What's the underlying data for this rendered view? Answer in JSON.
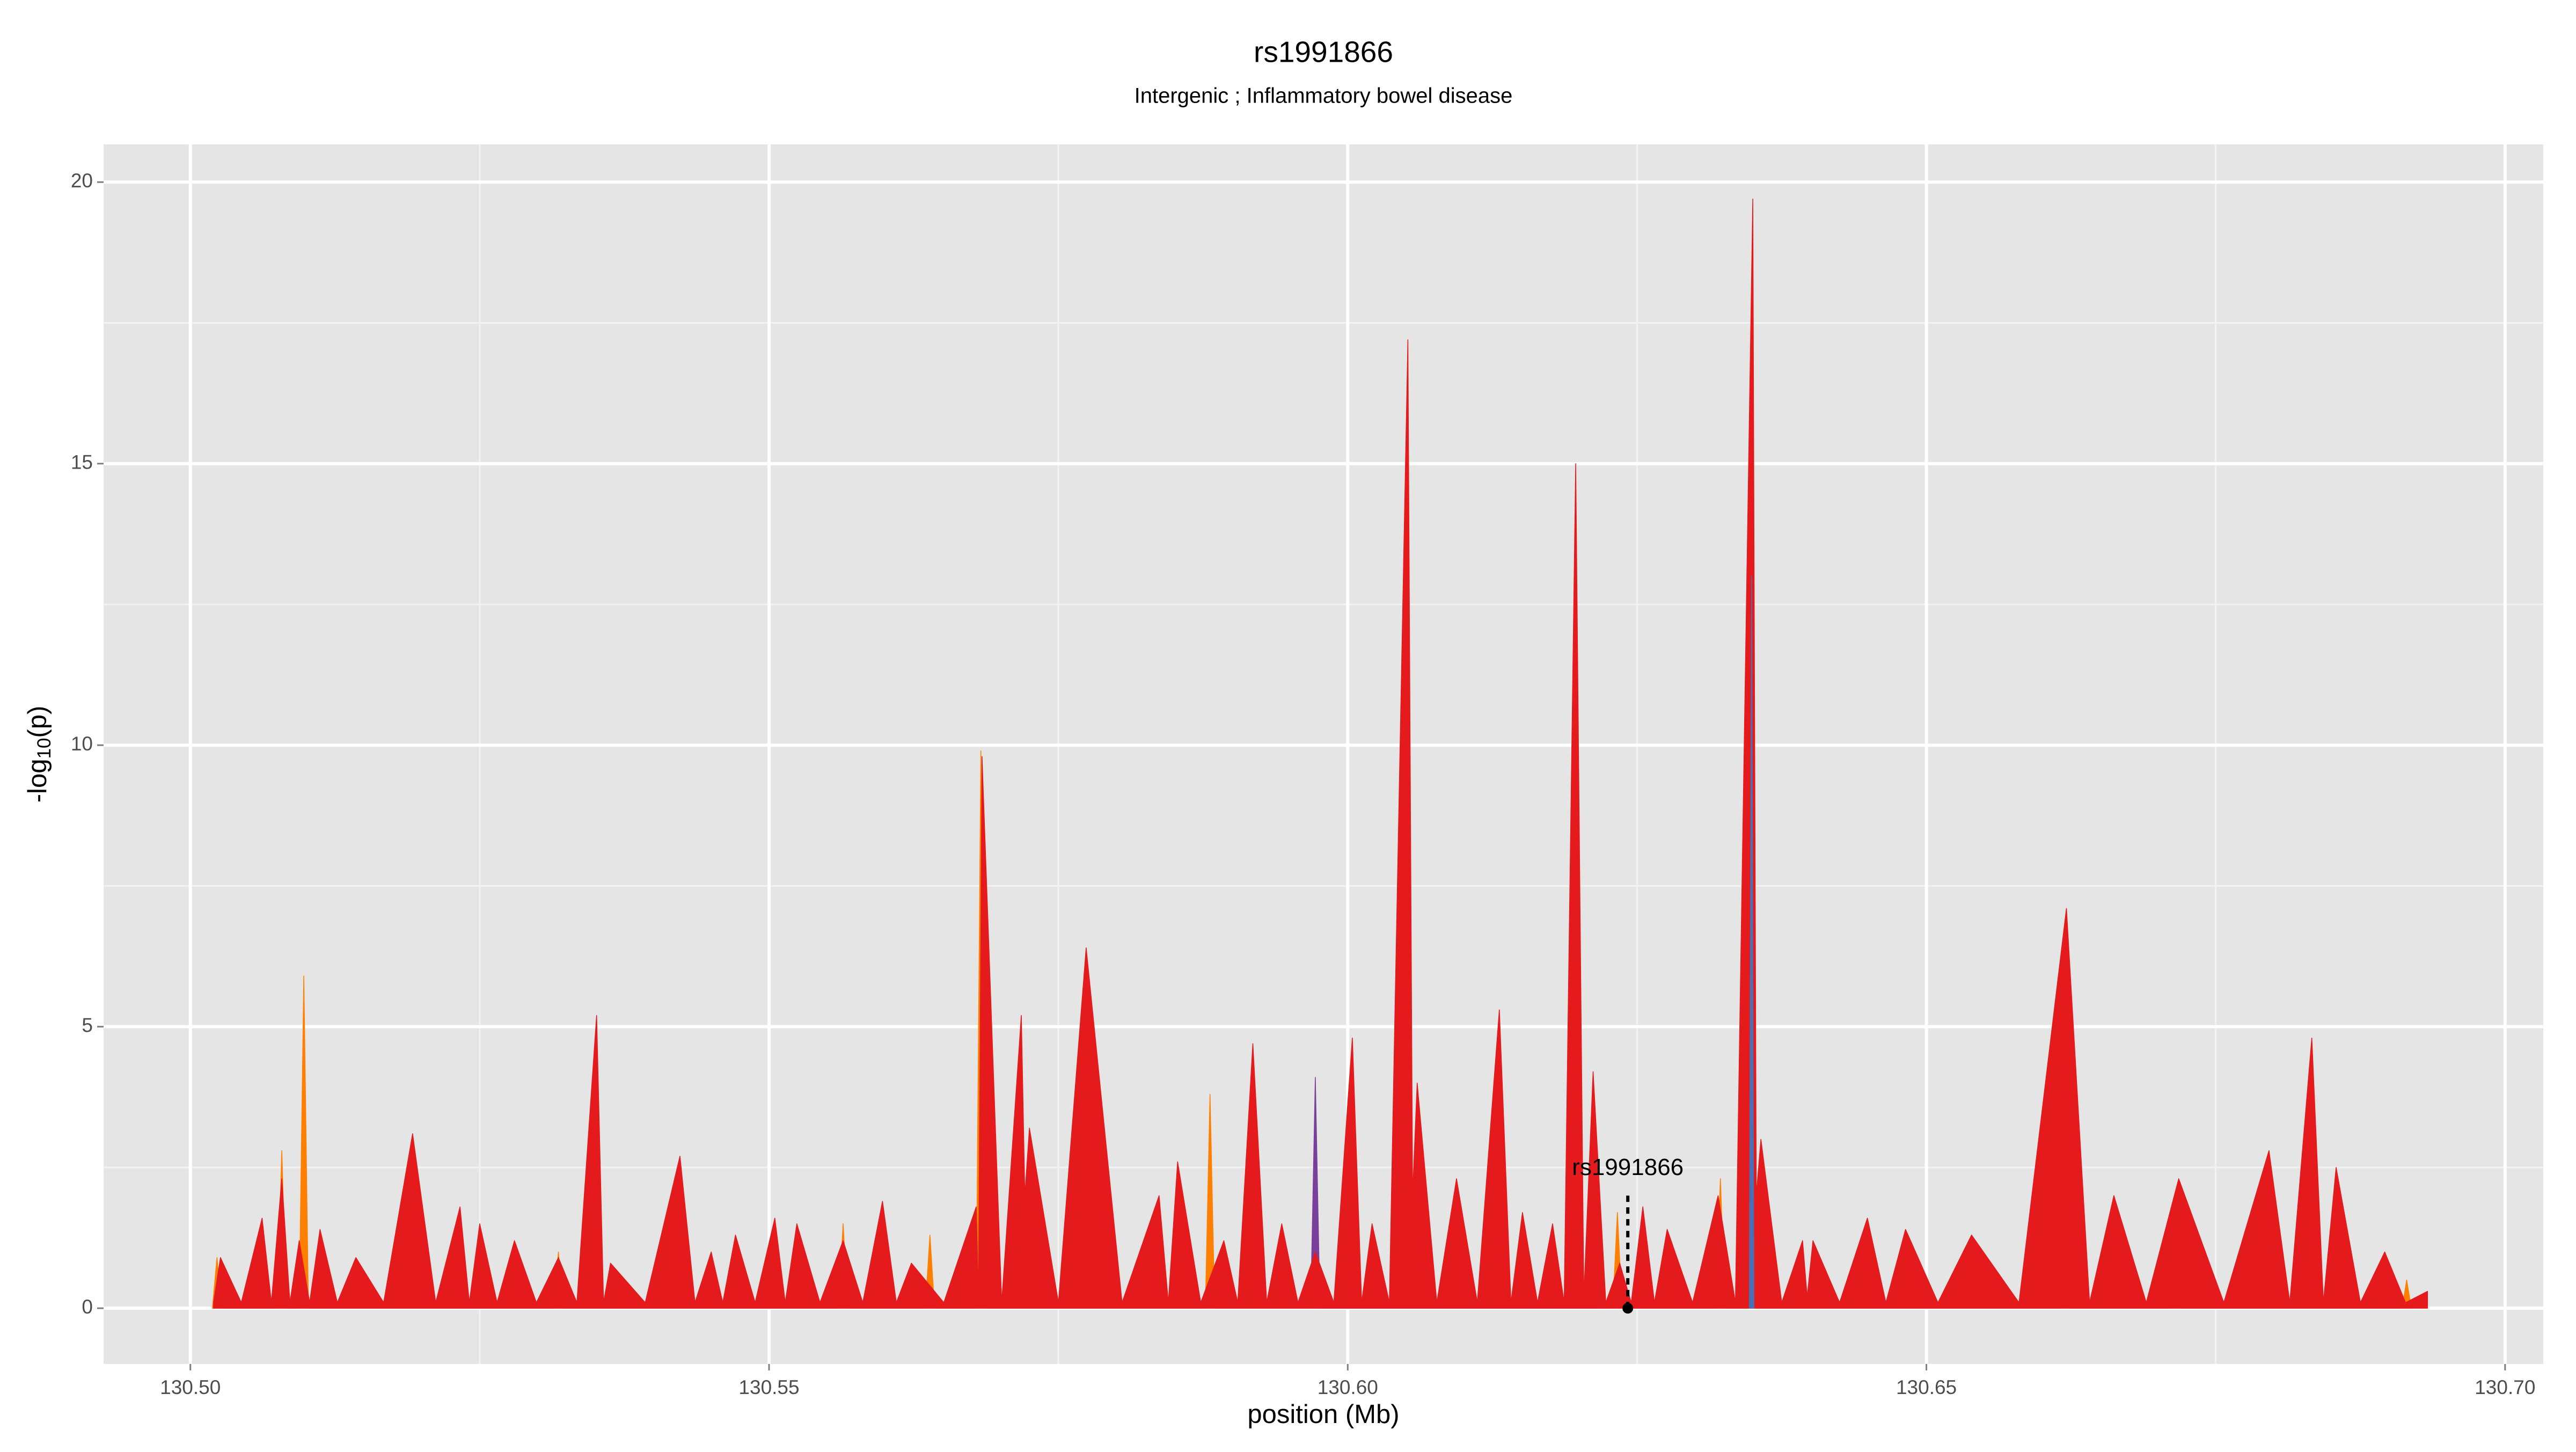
{
  "chart_data": {
    "type": "area",
    "title": "rs1991866",
    "subtitle": "Intergenic ; Inflammatory bowel disease",
    "x_label": "position (Mb)",
    "y_label": {
      "text": "-log",
      "subscript": "10",
      "suffix": "(p)"
    },
    "xlim": [
      130.4925,
      130.7033
    ],
    "ylim": [
      -0.99,
      20.67
    ],
    "xticks": [
      {
        "value": 130.5,
        "label": "130.50"
      },
      {
        "value": 130.55,
        "label": "130.55"
      },
      {
        "value": 130.6,
        "label": "130.60"
      },
      {
        "value": 130.65,
        "label": "130.65"
      },
      {
        "value": 130.7,
        "label": "130.70"
      }
    ],
    "yticks": [
      0,
      5,
      10,
      15,
      20
    ],
    "x_minor_grid": [
      130.525,
      130.575,
      130.625,
      130.675
    ],
    "y_minor_grid": [
      2.5,
      7.5,
      12.5,
      17.5
    ],
    "grid": true,
    "series": [
      {
        "color": "#ff7f00",
        "x": [
          130.5019,
          130.5023,
          130.5027,
          130.5075,
          130.5079,
          130.5083,
          130.5094,
          130.5098,
          130.5102,
          130.5314,
          130.5318,
          130.5322,
          130.556,
          130.5564,
          130.5568,
          130.5635,
          130.5639,
          130.5643,
          130.5679,
          130.5683,
          130.5687,
          130.5877,
          130.5881,
          130.5885,
          130.6229,
          130.6233,
          130.6237,
          130.6318,
          130.6322,
          130.6326,
          130.6616,
          130.662,
          130.6624,
          130.6712,
          130.6716,
          130.672,
          130.6911,
          130.6915,
          130.6919
        ],
        "values": [
          0,
          0.9,
          0,
          0,
          2.8,
          0,
          0,
          5.9,
          0,
          0,
          1.0,
          0,
          0,
          1.5,
          0,
          0,
          1.3,
          0,
          0,
          9.9,
          0,
          0,
          3.8,
          0,
          0,
          1.7,
          0,
          0,
          2.3,
          0,
          0,
          1.5,
          0,
          0,
          1.0,
          0,
          0,
          0.5,
          0
        ]
      },
      {
        "color": "#7a3f9a",
        "x": [
          130.5968,
          130.5972,
          130.5976,
          130.6215,
          130.6219,
          130.6223
        ],
        "values": [
          0,
          4.1,
          0,
          0,
          1.0,
          0
        ]
      },
      {
        "color": "#e41a1c",
        "x": [
          130.502,
          130.5026,
          130.5044,
          130.5062,
          130.507,
          130.5079,
          130.5086,
          130.5094,
          130.5103,
          130.5112,
          130.5127,
          130.5143,
          130.5167,
          130.5192,
          130.5212,
          130.5233,
          130.5241,
          130.525,
          130.5265,
          130.528,
          130.5299,
          130.5318,
          130.5334,
          130.5351,
          130.5357,
          130.5363,
          130.5393,
          130.5423,
          130.5436,
          130.545,
          130.546,
          130.5471,
          130.5488,
          130.5505,
          130.5514,
          130.5524,
          130.5544,
          130.5564,
          130.5581,
          130.5598,
          130.561,
          130.5623,
          130.5651,
          130.5679,
          130.5681,
          130.5684,
          130.5701,
          130.5718,
          130.5721,
          130.5725,
          130.575,
          130.5774,
          130.5805,
          130.5837,
          130.5845,
          130.5853,
          130.5873,
          130.5893,
          130.5905,
          130.5918,
          130.593,
          130.5943,
          130.5957,
          130.5972,
          130.5988,
          130.6004,
          130.6012,
          130.6021,
          130.6036,
          130.6052,
          130.6056,
          130.606,
          130.6077,
          130.6094,
          130.6112,
          130.6131,
          130.6141,
          130.6151,
          130.6164,
          130.6177,
          130.6187,
          130.6197,
          130.6204,
          130.6212,
          130.6223,
          130.6235,
          130.6245,
          130.6255,
          130.6265,
          130.6276,
          130.6298,
          130.632,
          130.6335,
          130.635,
          130.6353,
          130.6357,
          130.6375,
          130.6393,
          130.6397,
          130.6402,
          130.6425,
          130.6449,
          130.6465,
          130.6482,
          130.651,
          130.6539,
          130.658,
          130.6621,
          130.6641,
          130.6662,
          130.669,
          130.6718,
          130.6757,
          130.6796,
          130.6814,
          130.6833,
          130.6843,
          130.6854,
          130.6875,
          130.6896,
          130.6914,
          130.6933
        ],
        "values": [
          0.1,
          0.9,
          0.1,
          1.6,
          0.1,
          2.3,
          0.1,
          1.2,
          0.1,
          1.4,
          0.1,
          0.9,
          0.1,
          3.1,
          0.1,
          1.8,
          0.1,
          1.5,
          0.1,
          1.2,
          0.1,
          0.9,
          0.1,
          5.2,
          0.1,
          0.8,
          0.1,
          2.7,
          0.1,
          1.0,
          0.1,
          1.3,
          0.1,
          1.6,
          0.1,
          1.5,
          0.1,
          1.2,
          0.1,
          1.9,
          0.1,
          0.8,
          0.1,
          1.8,
          0.2,
          9.8,
          0.1,
          5.2,
          2.0,
          3.2,
          0.1,
          6.4,
          0.1,
          2.0,
          0.1,
          2.6,
          0.1,
          1.2,
          0.1,
          4.7,
          0.1,
          1.5,
          0.1,
          1.0,
          0.1,
          4.8,
          0.1,
          1.5,
          0.1,
          17.2,
          2.0,
          4.0,
          0.1,
          2.3,
          0.1,
          5.3,
          0.1,
          1.7,
          0.1,
          1.5,
          0.1,
          15.0,
          0.2,
          4.2,
          0.1,
          0.8,
          0.1,
          1.8,
          0.1,
          1.4,
          0.1,
          2.0,
          0.1,
          19.7,
          2.0,
          3.0,
          0.1,
          1.2,
          0.2,
          1.2,
          0.1,
          1.6,
          0.1,
          1.4,
          0.1,
          1.3,
          0.1,
          7.1,
          0.1,
          2.0,
          0.1,
          2.3,
          0.1,
          2.8,
          0.1,
          4.8,
          0.1,
          2.5,
          0.1,
          1.0,
          0.1,
          0.3
        ]
      },
      {
        "color": "#4a6fb5",
        "x": [
          130.6347,
          130.6349,
          130.6351
        ],
        "values": [
          0,
          13.0,
          0
        ]
      }
    ],
    "annotation": {
      "label": "rs1991866",
      "x": 130.6242,
      "y": 0,
      "line_top": 2.0
    }
  }
}
